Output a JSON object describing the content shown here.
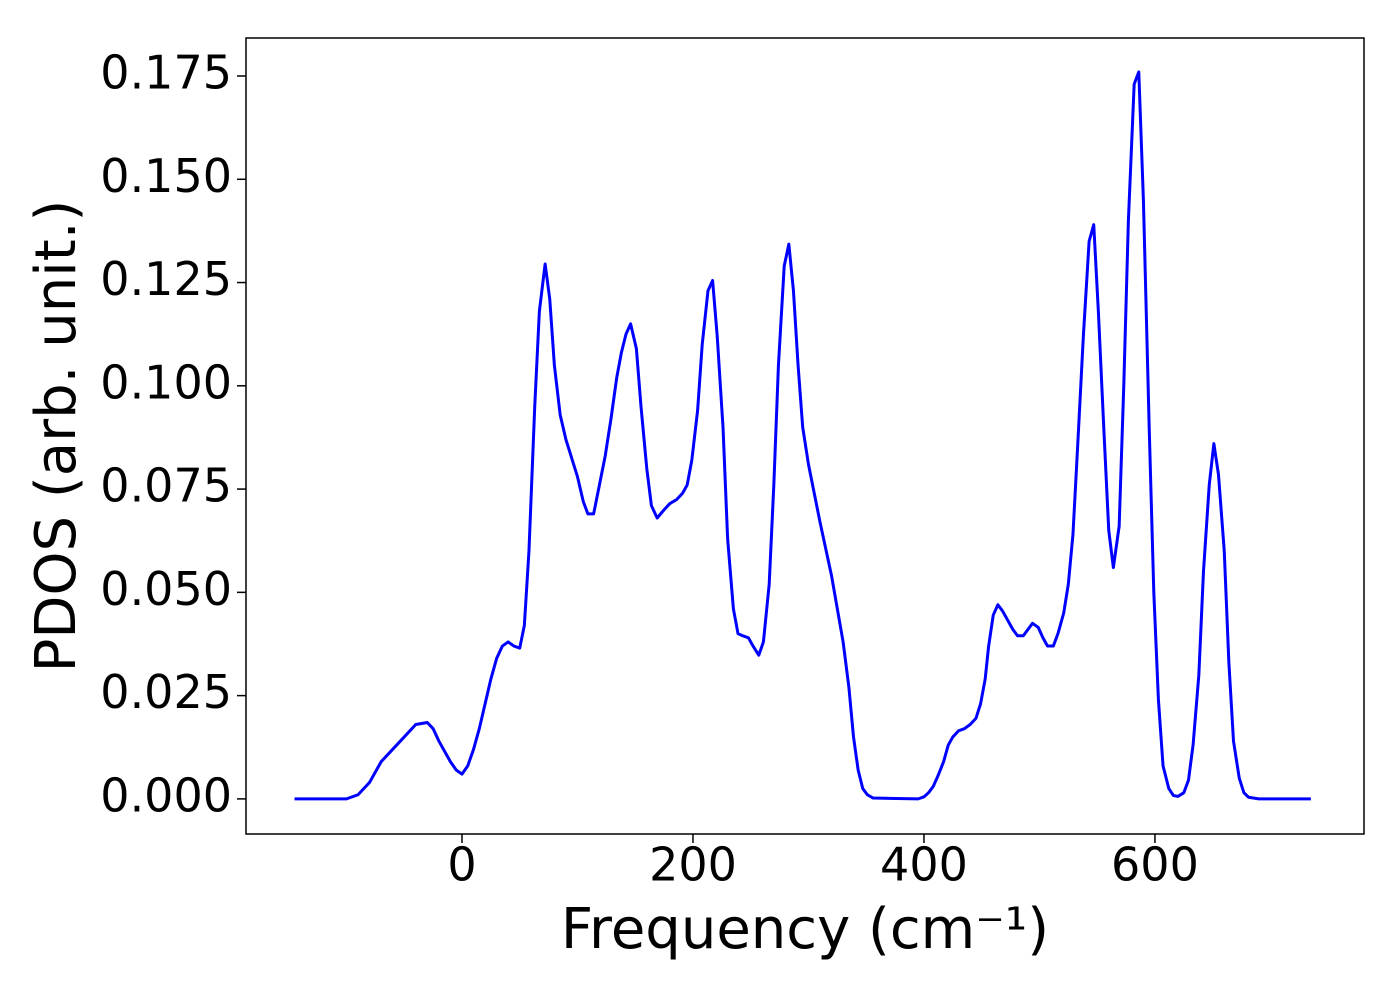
{
  "chart_data": {
    "type": "line",
    "xlabel": "Frequency (cm⁻¹)",
    "ylabel": "PDOS (arb. unit.)",
    "xlim": [
      -187,
      781
    ],
    "ylim": [
      -0.0085,
      0.1842
    ],
    "xticks": [
      0,
      200,
      400,
      600
    ],
    "yticks": [
      {
        "value": 0,
        "label": "0.000"
      },
      {
        "value": 0.025,
        "label": "0.025"
      },
      {
        "value": 0.05,
        "label": "0.050"
      },
      {
        "value": 0.075,
        "label": "0.075"
      },
      {
        "value": 0.1,
        "label": "0.100"
      },
      {
        "value": 0.125,
        "label": "0.125"
      },
      {
        "value": 0.15,
        "label": "0.150"
      },
      {
        "value": 0.175,
        "label": "0.175"
      }
    ],
    "grid": false,
    "series": [
      {
        "color": "#0000ff",
        "x": [
          -145,
          -100,
          -90,
          -80,
          -70,
          -60,
          -50,
          -40,
          -30,
          -25,
          -20,
          -10,
          -5,
          0,
          5,
          10,
          15,
          20,
          25,
          30,
          35,
          40,
          45,
          50,
          54,
          58,
          63,
          67,
          72,
          76,
          80,
          85,
          90,
          100,
          105,
          109,
          114,
          119,
          124,
          129,
          134,
          138,
          142,
          146,
          151,
          155,
          160,
          164,
          169,
          175,
          180,
          186,
          191,
          195,
          199,
          204,
          208,
          213,
          217,
          221,
          226,
          230,
          235,
          239,
          243,
          248,
          252,
          257,
          261,
          266,
          270,
          274,
          279,
          283,
          287,
          291,
          295,
          300,
          310,
          320,
          330,
          335,
          339,
          343,
          347,
          351,
          356,
          395,
          400,
          404,
          408,
          412,
          417,
          421,
          425,
          430,
          435,
          440,
          445,
          449,
          453,
          456,
          460,
          464,
          468,
          473,
          477,
          481,
          486,
          490,
          494,
          499,
          503,
          507,
          512,
          516,
          521,
          525,
          529,
          533,
          538,
          543,
          547,
          551,
          556,
          560,
          564,
          569,
          573,
          577,
          582,
          586,
          590,
          595,
          599,
          603,
          607,
          612,
          616,
          620,
          625,
          629,
          633,
          638,
          642,
          647,
          651,
          655,
          660,
          664,
          668,
          673,
          677,
          681,
          690,
          735
        ],
        "values": [
          0,
          0,
          0.001,
          0.004,
          0.009,
          0.012,
          0.015,
          0.018,
          0.0185,
          0.017,
          0.014,
          0.009,
          0.007,
          0.006,
          0.008,
          0.012,
          0.017,
          0.023,
          0.029,
          0.034,
          0.037,
          0.038,
          0.037,
          0.0365,
          0.042,
          0.06,
          0.095,
          0.118,
          0.1295,
          0.121,
          0.105,
          0.093,
          0.087,
          0.078,
          0.072,
          0.069,
          0.069,
          0.076,
          0.083,
          0.092,
          0.102,
          0.108,
          0.1125,
          0.115,
          0.109,
          0.095,
          0.08,
          0.071,
          0.068,
          0.07,
          0.0715,
          0.0725,
          0.074,
          0.076,
          0.082,
          0.094,
          0.11,
          0.123,
          0.1255,
          0.112,
          0.09,
          0.063,
          0.046,
          0.04,
          0.0395,
          0.039,
          0.037,
          0.0348,
          0.038,
          0.052,
          0.076,
          0.105,
          0.129,
          0.1343,
          0.123,
          0.105,
          0.09,
          0.081,
          0.067,
          0.054,
          0.038,
          0.027,
          0.015,
          0.007,
          0.0025,
          0.001,
          0.0002,
          0,
          0.0005,
          0.0015,
          0.003,
          0.0055,
          0.009,
          0.013,
          0.015,
          0.0165,
          0.017,
          0.018,
          0.0195,
          0.023,
          0.029,
          0.037,
          0.0445,
          0.047,
          0.0455,
          0.043,
          0.041,
          0.0395,
          0.0395,
          0.041,
          0.0425,
          0.0415,
          0.039,
          0.037,
          0.037,
          0.04,
          0.045,
          0.052,
          0.064,
          0.085,
          0.112,
          0.135,
          0.139,
          0.118,
          0.088,
          0.065,
          0.056,
          0.066,
          0.1,
          0.14,
          0.173,
          0.176,
          0.145,
          0.09,
          0.05,
          0.024,
          0.008,
          0.0025,
          0.0008,
          0.0006,
          0.0015,
          0.0045,
          0.013,
          0.03,
          0.055,
          0.076,
          0.086,
          0.0785,
          0.06,
          0.033,
          0.014,
          0.005,
          0.0015,
          0.0004,
          0,
          0
        ]
      }
    ]
  }
}
